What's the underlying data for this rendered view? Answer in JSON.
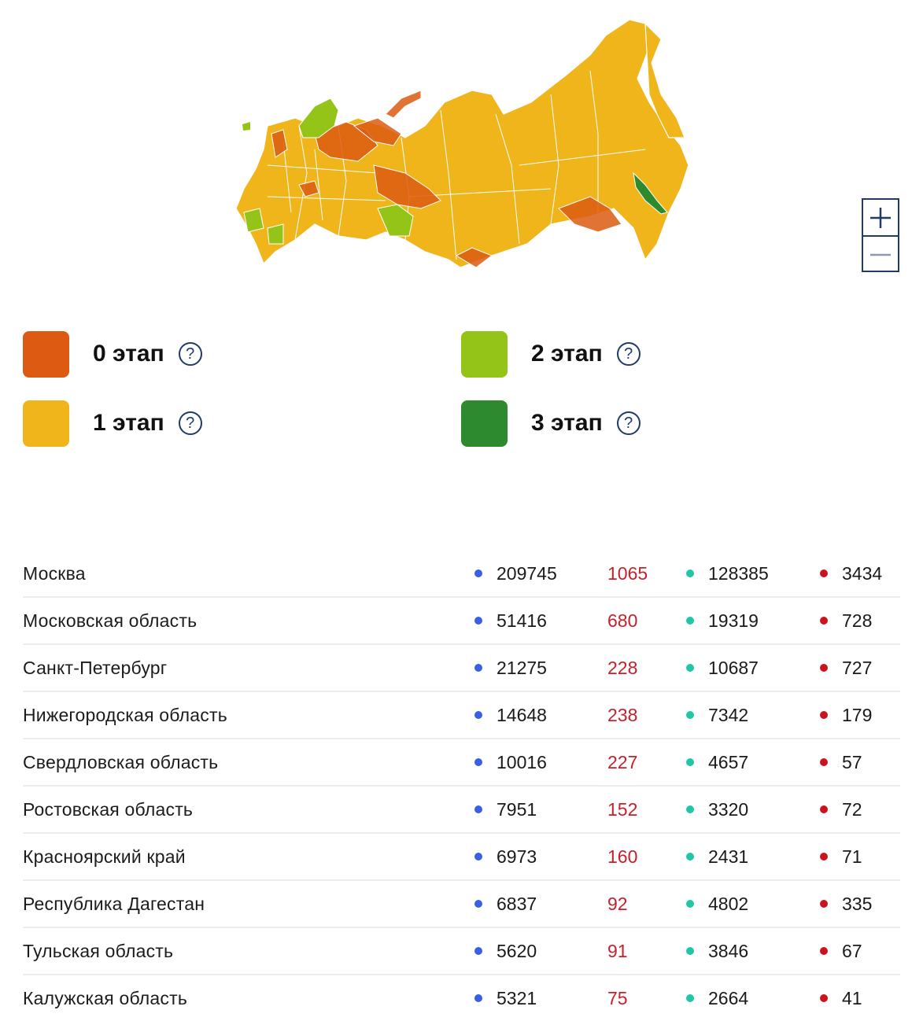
{
  "colors": {
    "stage0": "#dc5a12",
    "stage1": "#f1b51c",
    "stage2": "#94c417",
    "stage3": "#2e8a2e",
    "confirmed_dot": "#3a5fe0",
    "new_cases": "#c8202b",
    "recovered_dot": "#1ec7a5",
    "deaths_dot": "#c8141e",
    "accent": "#1f3a6b"
  },
  "zoom": {
    "in_icon": "plus-icon",
    "out_icon": "minus-icon"
  },
  "legend": [
    {
      "label": "0 этап",
      "color": "#dc5a12",
      "icon": "help-icon"
    },
    {
      "label": "1 этап",
      "color": "#f1b51c",
      "icon": "help-icon"
    },
    {
      "label": "2 этап",
      "color": "#94c417",
      "icon": "help-icon"
    },
    {
      "label": "3 этап",
      "color": "#2e8a2e",
      "icon": "help-icon"
    }
  ],
  "help_glyph": "?",
  "regions": [
    {
      "name": "Москва",
      "confirmed": "209745",
      "new": "1065",
      "recovered": "128385",
      "deaths": "3434"
    },
    {
      "name": "Московская область",
      "confirmed": "51416",
      "new": "680",
      "recovered": "19319",
      "deaths": "728"
    },
    {
      "name": "Санкт-Петербург",
      "confirmed": "21275",
      "new": "228",
      "recovered": "10687",
      "deaths": "727"
    },
    {
      "name": "Нижегородская область",
      "confirmed": "14648",
      "new": "238",
      "recovered": "7342",
      "deaths": "179"
    },
    {
      "name": "Свердловская область",
      "confirmed": "10016",
      "new": "227",
      "recovered": "4657",
      "deaths": "57"
    },
    {
      "name": "Ростовская область",
      "confirmed": "7951",
      "new": "152",
      "recovered": "3320",
      "deaths": "72"
    },
    {
      "name": "Красноярский край",
      "confirmed": "6973",
      "new": "160",
      "recovered": "2431",
      "deaths": "71"
    },
    {
      "name": "Республика Дагестан",
      "confirmed": "6837",
      "new": "92",
      "recovered": "4802",
      "deaths": "335"
    },
    {
      "name": "Тульская область",
      "confirmed": "5620",
      "new": "91",
      "recovered": "3846",
      "deaths": "67"
    },
    {
      "name": "Калужская область",
      "confirmed": "5321",
      "new": "75",
      "recovered": "2664",
      "deaths": "41"
    }
  ]
}
